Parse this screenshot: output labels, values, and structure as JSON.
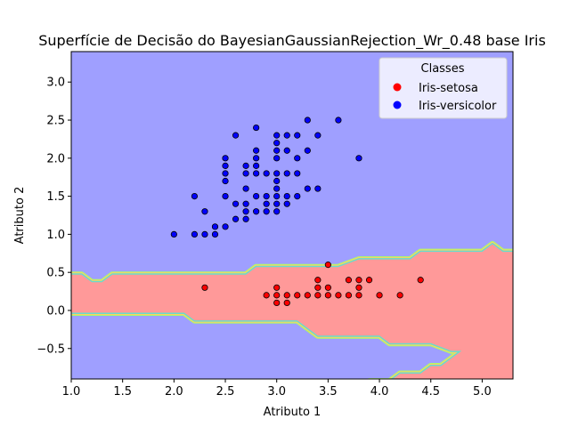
{
  "chart_data": {
    "type": "scatter",
    "title": "Superfície de Decisão do BayesianGaussianRejection_Wr_0.48 base Iris",
    "xlabel": "Atributo 1",
    "ylabel": "Atributo 2",
    "xlim": [
      1.0,
      5.3
    ],
    "ylim": [
      -0.9,
      3.4
    ],
    "x_ticks": [
      "1.0",
      "1.5",
      "2.0",
      "2.5",
      "3.0",
      "3.5",
      "4.0",
      "4.5",
      "5.0"
    ],
    "y_ticks": [
      "−0.5",
      "0.0",
      "0.5",
      "1.0",
      "1.5",
      "2.0",
      "2.5",
      "3.0"
    ],
    "grid": false,
    "legend": {
      "title": "Classes",
      "placement": "top-right",
      "entries": [
        {
          "name": "Iris-setosa",
          "color": "#ff0000"
        },
        {
          "name": "Iris-versicolor",
          "color": "#0000ff"
        }
      ]
    },
    "regions": {
      "background_color": "#9f9fff",
      "band_color": "#ff9999",
      "band_upper_boundary": [
        [
          1.0,
          0.47
        ],
        [
          1.1,
          0.47
        ],
        [
          1.2,
          0.37
        ],
        [
          1.3,
          0.37
        ],
        [
          1.4,
          0.47
        ],
        [
          2.4,
          0.47
        ],
        [
          2.6,
          0.47
        ],
        [
          2.7,
          0.47
        ],
        [
          2.8,
          0.57
        ],
        [
          3.6,
          0.57
        ],
        [
          3.8,
          0.67
        ],
        [
          4.2,
          0.67
        ],
        [
          4.3,
          0.67
        ],
        [
          4.4,
          0.77
        ],
        [
          5.0,
          0.77
        ],
        [
          5.1,
          0.87
        ],
        [
          5.2,
          0.77
        ],
        [
          5.3,
          0.77
        ]
      ],
      "band_lower_boundary": [
        [
          1.0,
          -0.03
        ],
        [
          2.1,
          -0.03
        ],
        [
          2.2,
          -0.13
        ],
        [
          2.6,
          -0.13
        ],
        [
          2.7,
          -0.13
        ],
        [
          3.2,
          -0.13
        ],
        [
          3.3,
          -0.23
        ],
        [
          3.4,
          -0.33
        ],
        [
          4.0,
          -0.33
        ],
        [
          4.1,
          -0.43
        ],
        [
          4.5,
          -0.43
        ],
        [
          4.7,
          -0.53
        ],
        [
          4.8,
          -0.53
        ],
        [
          4.7,
          -0.63
        ],
        [
          4.6,
          -0.73
        ],
        [
          4.5,
          -0.73
        ],
        [
          4.4,
          -0.83
        ],
        [
          4.2,
          -0.83
        ],
        [
          4.1,
          -0.93
        ],
        [
          3.9,
          -0.93
        ]
      ],
      "transition_colors": [
        "#aaff66",
        "#ffcc66",
        "#66ddcc"
      ]
    },
    "series": [
      {
        "name": "Iris-setosa",
        "color": "#ff0000",
        "points": [
          [
            2.3,
            0.3
          ],
          [
            2.9,
            0.2
          ],
          [
            3.0,
            0.3
          ],
          [
            3.0,
            0.2
          ],
          [
            3.0,
            0.1
          ],
          [
            3.1,
            0.2
          ],
          [
            3.1,
            0.1
          ],
          [
            3.2,
            0.2
          ],
          [
            3.3,
            0.2
          ],
          [
            3.4,
            0.2
          ],
          [
            3.4,
            0.4
          ],
          [
            3.4,
            0.3
          ],
          [
            3.5,
            0.2
          ],
          [
            3.5,
            0.3
          ],
          [
            3.5,
            0.6
          ],
          [
            3.6,
            0.2
          ],
          [
            3.7,
            0.2
          ],
          [
            3.7,
            0.4
          ],
          [
            3.8,
            0.2
          ],
          [
            3.8,
            0.3
          ],
          [
            3.8,
            0.4
          ],
          [
            3.9,
            0.4
          ],
          [
            4.0,
            0.2
          ],
          [
            4.2,
            0.2
          ],
          [
            4.4,
            0.4
          ]
        ]
      },
      {
        "name": "Iris-versicolor",
        "color": "#0000ff",
        "points": [
          [
            2.0,
            1.0
          ],
          [
            2.2,
            1.0
          ],
          [
            2.2,
            1.5
          ],
          [
            2.3,
            1.0
          ],
          [
            2.3,
            1.3
          ],
          [
            2.4,
            1.0
          ],
          [
            2.4,
            1.1
          ],
          [
            2.5,
            1.1
          ],
          [
            2.5,
            1.5
          ],
          [
            2.5,
            1.7
          ],
          [
            2.5,
            1.8
          ],
          [
            2.5,
            1.9
          ],
          [
            2.5,
            2.0
          ],
          [
            2.6,
            1.2
          ],
          [
            2.6,
            1.4
          ],
          [
            2.6,
            2.3
          ],
          [
            2.7,
            1.2
          ],
          [
            2.7,
            1.3
          ],
          [
            2.7,
            1.4
          ],
          [
            2.7,
            1.6
          ],
          [
            2.7,
            1.8
          ],
          [
            2.7,
            1.9
          ],
          [
            2.8,
            1.3
          ],
          [
            2.8,
            1.5
          ],
          [
            2.8,
            1.8
          ],
          [
            2.8,
            1.9
          ],
          [
            2.8,
            2.0
          ],
          [
            2.8,
            2.1
          ],
          [
            2.8,
            2.4
          ],
          [
            2.9,
            1.3
          ],
          [
            2.9,
            1.4
          ],
          [
            2.9,
            1.5
          ],
          [
            2.9,
            1.8
          ],
          [
            3.0,
            1.3
          ],
          [
            3.0,
            1.4
          ],
          [
            3.0,
            1.5
          ],
          [
            3.0,
            1.6
          ],
          [
            3.0,
            1.7
          ],
          [
            3.0,
            1.8
          ],
          [
            3.0,
            2.0
          ],
          [
            3.0,
            2.1
          ],
          [
            3.0,
            2.2
          ],
          [
            3.0,
            2.3
          ],
          [
            3.1,
            1.4
          ],
          [
            3.1,
            1.5
          ],
          [
            3.1,
            1.8
          ],
          [
            3.1,
            2.1
          ],
          [
            3.1,
            2.3
          ],
          [
            3.2,
            1.5
          ],
          [
            3.2,
            1.8
          ],
          [
            3.2,
            2.0
          ],
          [
            3.2,
            2.3
          ],
          [
            3.3,
            1.6
          ],
          [
            3.3,
            2.1
          ],
          [
            3.3,
            2.5
          ],
          [
            3.4,
            1.6
          ],
          [
            3.4,
            2.3
          ],
          [
            3.6,
            2.5
          ],
          [
            3.8,
            2.0
          ]
        ]
      }
    ]
  }
}
